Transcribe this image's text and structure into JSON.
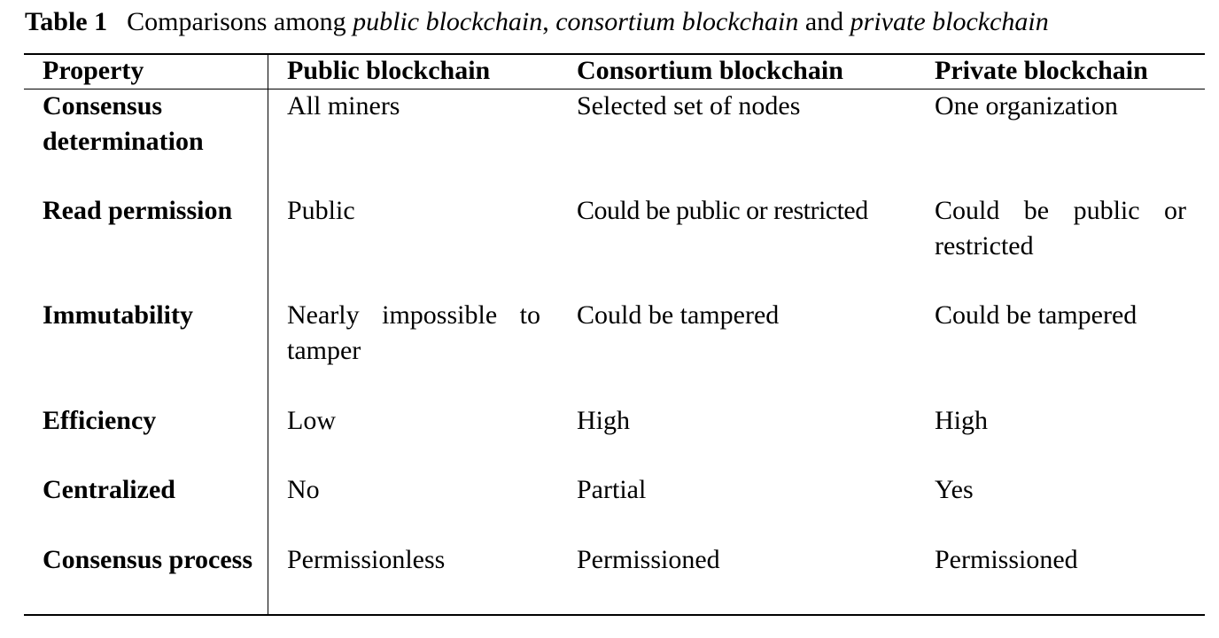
{
  "caption": {
    "label": "Table 1",
    "prefix": "Comparisons among ",
    "term1": "public blockchain",
    "sep1": ", ",
    "term2": "consortium blockchain",
    "sep2": " and ",
    "term3": "private blockchain"
  },
  "table": {
    "headers": [
      "Property",
      "Public blockchain",
      "Consortium blockchain",
      "Private blockchain"
    ],
    "rows": [
      [
        "Consensus determination",
        "All miners",
        "Selected set of nodes",
        "One organization"
      ],
      [
        "Read permission",
        "Public",
        "Could be public or restricted",
        "Could be public or restricted"
      ],
      [
        "Immutability",
        "Nearly impossible to tamper",
        "Could be tampered",
        "Could be tampered"
      ],
      [
        "Efficiency",
        "Low",
        "High",
        "High"
      ],
      [
        "Centralized",
        "No",
        "Partial",
        "Yes"
      ],
      [
        "Consensus process",
        "Permissionless",
        "Permissioned",
        "Permissioned"
      ]
    ]
  }
}
